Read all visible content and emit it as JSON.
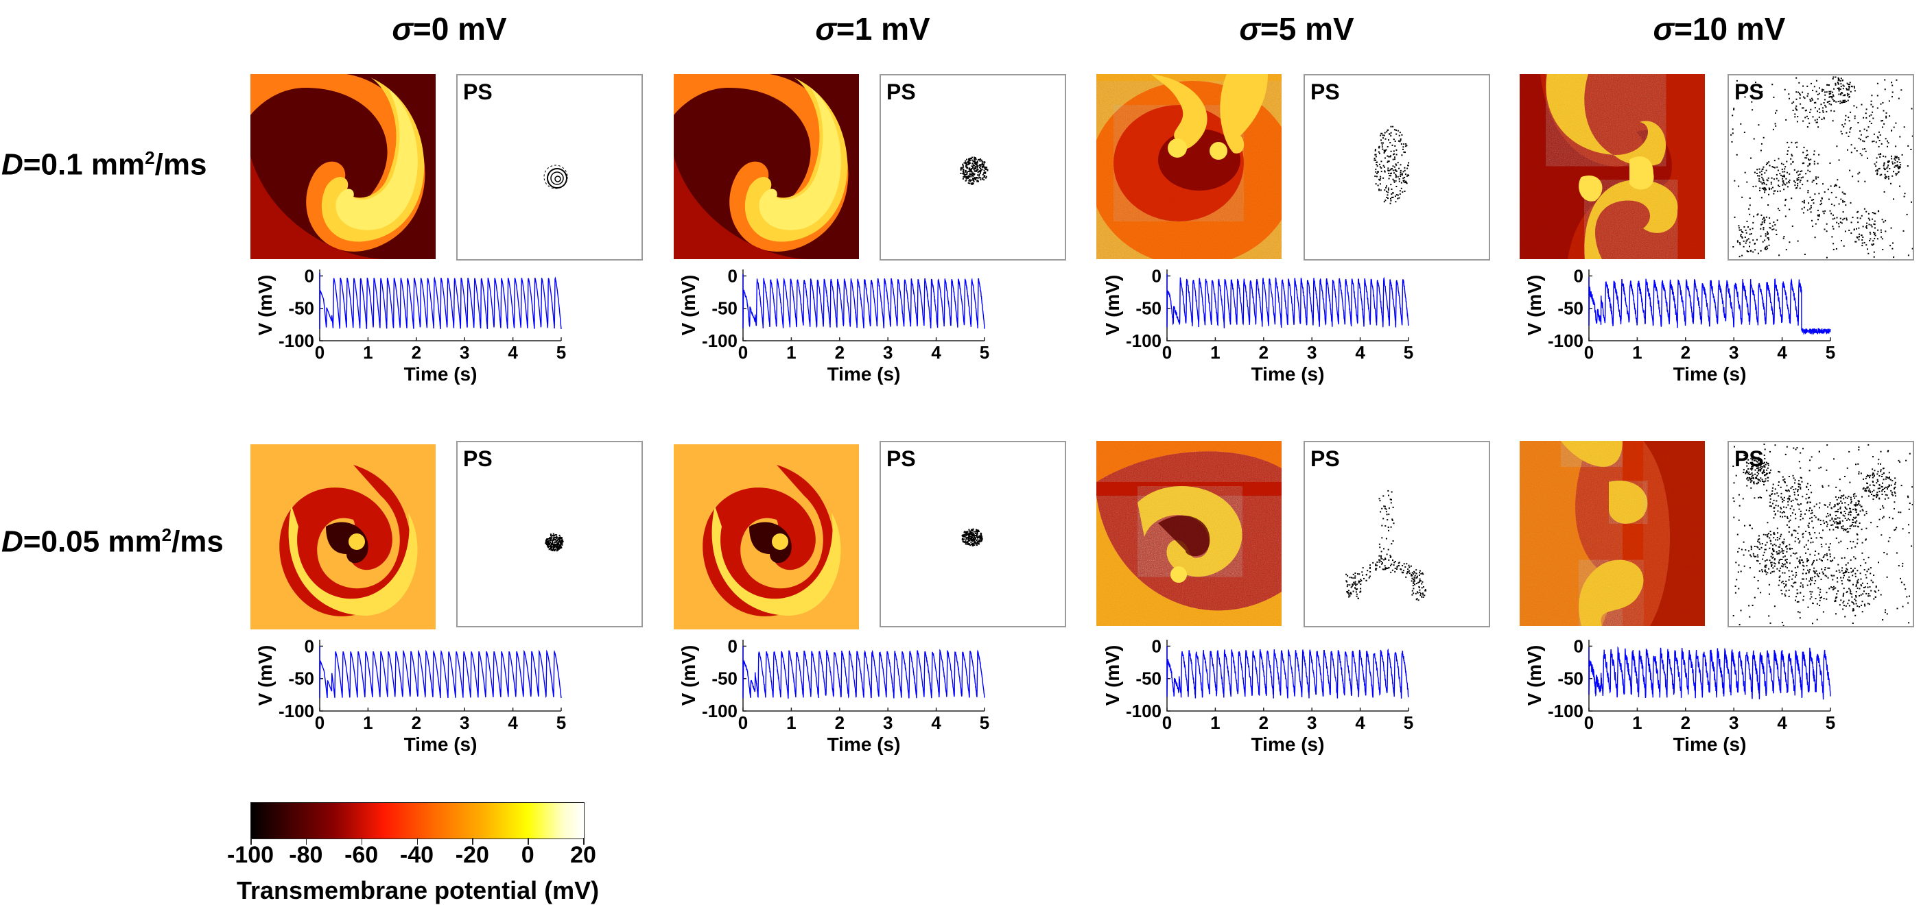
{
  "figure": {
    "column_titles": [
      {
        "symbol": "σ",
        "text": "=0 mV"
      },
      {
        "symbol": "σ",
        "text": "=1 mV"
      },
      {
        "symbol": "σ",
        "text": "=5 mV"
      },
      {
        "symbol": "σ",
        "text": "=10 mV"
      }
    ],
    "row_labels": [
      {
        "symbol": "D",
        "text": "=0.1 mm",
        "sup": "2",
        "unit_tail": "/ms"
      },
      {
        "symbol": "D",
        "text": "=0.05 mm",
        "sup": "2",
        "unit_tail": "/ms"
      }
    ],
    "ps_label": "PS",
    "colorbar": {
      "ticks": [
        "-100",
        "-80",
        "-60",
        "-40",
        "-20",
        "0",
        "20"
      ],
      "title": "Transmembrane potential (mV)"
    }
  },
  "chart_data": {
    "type": "line",
    "xlabel": "Time (s)",
    "ylabel": "V (mV)",
    "xlim": [
      0,
      5
    ],
    "ylim": [
      -100,
      10
    ],
    "xticks": [
      "0",
      "1",
      "2",
      "3",
      "4",
      "5"
    ],
    "yticks": [
      "0",
      "-50",
      "-100"
    ],
    "series_color": "#0000ff",
    "panels": [
      {
        "row": "D=0.1",
        "col": "σ=0",
        "beats": 36,
        "peak": -3,
        "trough": -82,
        "noise": 0,
        "note": "regular"
      },
      {
        "row": "D=0.1",
        "col": "σ=1",
        "beats": 36,
        "peak": -5,
        "trough": -80,
        "noise": 2,
        "note": "regular"
      },
      {
        "row": "D=0.1",
        "col": "σ=5",
        "beats": 38,
        "peak": -5,
        "trough": -78,
        "noise": 3,
        "note": "regular"
      },
      {
        "row": "D=0.1",
        "col": "σ=10",
        "beats": 30,
        "peak": -10,
        "trough": -75,
        "noise": 6,
        "terminate_at": 4.4,
        "rest": -85
      },
      {
        "row": "D=0.05",
        "col": "σ=0",
        "beats": 32,
        "peak": -8,
        "trough": -80,
        "noise": 0,
        "note": "regular"
      },
      {
        "row": "D=0.05",
        "col": "σ=1",
        "beats": 32,
        "peak": -8,
        "trough": -80,
        "noise": 2,
        "note": "regular"
      },
      {
        "row": "D=0.05",
        "col": "σ=5",
        "beats": 34,
        "peak": -8,
        "trough": -78,
        "noise": 4,
        "note": "regular"
      },
      {
        "row": "D=0.05",
        "col": "σ=10",
        "beats": 34,
        "peak": -10,
        "trough": -75,
        "noise": 8,
        "note": "irregular"
      }
    ],
    "colorbar_range": [
      -100,
      20
    ]
  },
  "colors": {
    "trace": "#0000ff",
    "ps_border": "#9a9a9a"
  }
}
